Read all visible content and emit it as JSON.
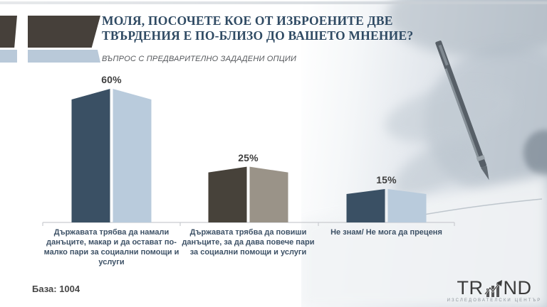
{
  "slide": {
    "title": "МОЛЯ, ПОСОЧЕТЕ КОЕ ОТ ИЗБРОЕНИТЕ ДВЕ ТВЪРДЕНИЯ Е ПО-БЛИЗО ДО ВАШЕТО МНЕНИЕ?",
    "subtitle": "ВЪПРОС С ПРЕДВАРИТЕЛНО ЗАДАДЕНИ ОПЦИИ",
    "base_label": "База: 1004"
  },
  "chart_data": {
    "type": "bar",
    "style": "3d-prism-columns",
    "title": "МОЛЯ, ПОСОЧЕТЕ КОЕ ОТ ИЗБРОЕНИТЕ ДВЕ ТВЪРДЕНИЯ Е ПО-БЛИЗО ДО ВАШЕТО МНЕНИЕ?",
    "subtitle": "ВЪПРОС С ПРЕДВАРИТЕЛНО ЗАДАДЕНИ ОПЦИИ",
    "categories": [
      "Държавата трябва да намали данъците, макар и да остават по-малко пари за социални помощи и услуги",
      "Държавата трябва да повиши данъците, за да дава повече пари за социални помощи и услуги",
      "Не знам/ Не мога да преценя"
    ],
    "values": [
      60,
      25,
      15
    ],
    "value_labels": [
      "60%",
      "25%",
      "15%"
    ],
    "unit": "percent",
    "base_n": 1004,
    "ylim": [
      0,
      65
    ],
    "grid": false,
    "legend": "none",
    "bar_colors": [
      {
        "front": "#3a5064",
        "side": "#b9cbdc"
      },
      {
        "front": "#47423a",
        "side": "#9a9388"
      },
      {
        "front": "#3a5064",
        "side": "#b9cbdc"
      }
    ],
    "axis_color": "#c9ccd0",
    "category_label_color": "#3d5166",
    "value_label_color": "#3f3f3f"
  },
  "logo": {
    "left": "TR",
    "right": "ND",
    "subtitle": "ИЗСЛЕДОВАТЕЛСКИ ЦЕНТЪР"
  },
  "decoration": {
    "flag_dark": "#46403a",
    "flag_light": "#b9c9d9",
    "title_color": "#2f4a63"
  }
}
